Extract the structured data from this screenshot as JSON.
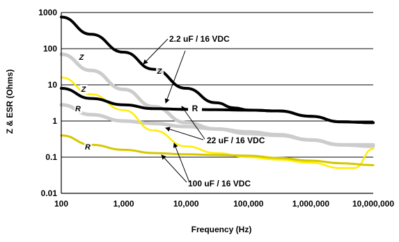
{
  "chart_data": {
    "type": "line",
    "xlabel": "Frequency (Hz)",
    "ylabel": "Z & ESR (Ohms)",
    "xscale": "log",
    "yscale": "log",
    "xlim": [
      100,
      10000000
    ],
    "ylim": [
      0.01,
      1000
    ],
    "grid": "horizontal",
    "x_ticks": [
      "100",
      "1,000",
      "10,000",
      "100,000",
      "1,000,000",
      "10,000,000"
    ],
    "y_ticks": [
      "1000",
      "100",
      "10",
      "1",
      "0.1",
      "0.01"
    ],
    "series": [
      {
        "name": "2.2 uF / 16 VDC",
        "kind": "Z",
        "color": "#000000",
        "points": [
          [
            100,
            750
          ],
          [
            300,
            250
          ],
          [
            1000,
            80
          ],
          [
            3000,
            27
          ],
          [
            10000,
            8
          ],
          [
            30000,
            3.2
          ],
          [
            60000,
            2.3
          ],
          [
            100000,
            2.0
          ],
          [
            300000,
            1.9
          ],
          [
            1000000,
            1.35
          ],
          [
            3000000,
            0.95
          ],
          [
            10000000,
            0.9
          ]
        ]
      },
      {
        "name": "2.2 uF / 16 VDC",
        "kind": "R",
        "color": "#000000",
        "points": [
          [
            100,
            8
          ],
          [
            300,
            4.2
          ],
          [
            1000,
            2.8
          ],
          [
            3000,
            2.2
          ],
          [
            10000,
            2.1
          ],
          [
            30000,
            2.05
          ],
          [
            100000,
            2.0
          ],
          [
            300000,
            1.9
          ],
          [
            1000000,
            1.35
          ],
          [
            3000000,
            0.95
          ],
          [
            10000000,
            0.9
          ]
        ]
      },
      {
        "name": "22 uF / 16 VDC",
        "kind": "Z",
        "color": "#cccccc",
        "points": [
          [
            100,
            70
          ],
          [
            300,
            25
          ],
          [
            1000,
            7.5
          ],
          [
            3000,
            2.5
          ],
          [
            10000,
            0.9
          ],
          [
            30000,
            0.6
          ],
          [
            100000,
            0.45
          ],
          [
            300000,
            0.4
          ],
          [
            1000000,
            0.3
          ],
          [
            3000000,
            0.22
          ],
          [
            10000000,
            0.22
          ]
        ]
      },
      {
        "name": "22 uF / 16 VDC",
        "kind": "R",
        "color": "#cccccc",
        "points": [
          [
            100,
            2.8
          ],
          [
            300,
            1.5
          ],
          [
            1000,
            1.0
          ],
          [
            3000,
            0.85
          ],
          [
            10000,
            0.7
          ],
          [
            30000,
            0.6
          ],
          [
            100000,
            0.5
          ],
          [
            300000,
            0.42
          ],
          [
            1000000,
            0.3
          ],
          [
            3000000,
            0.22
          ],
          [
            10000000,
            0.2
          ]
        ]
      },
      {
        "name": "100 uF / 16 VDC",
        "kind": "Z",
        "color": "#ffee00",
        "points": [
          [
            100,
            16
          ],
          [
            300,
            5.5
          ],
          [
            1000,
            2.0
          ],
          [
            3000,
            0.55
          ],
          [
            10000,
            0.2
          ],
          [
            30000,
            0.13
          ],
          [
            100000,
            0.1
          ],
          [
            300000,
            0.085
          ],
          [
            1000000,
            0.07
          ],
          [
            3000000,
            0.05
          ],
          [
            5000000,
            0.05
          ],
          [
            10000000,
            0.17
          ]
        ]
      },
      {
        "name": "100 uF / 16 VDC",
        "kind": "R",
        "color": "#d4c800",
        "points": [
          [
            100,
            0.4
          ],
          [
            300,
            0.22
          ],
          [
            1000,
            0.16
          ],
          [
            3000,
            0.13
          ],
          [
            10000,
            0.12
          ],
          [
            30000,
            0.115
          ],
          [
            100000,
            0.11
          ],
          [
            300000,
            0.095
          ],
          [
            1000000,
            0.08
          ],
          [
            3000000,
            0.068
          ],
          [
            10000000,
            0.06
          ]
        ]
      }
    ],
    "annotations": [
      {
        "text": "2.2 uF / 16 VDC"
      },
      {
        "text": "22 uF / 16 VDC"
      },
      {
        "text": "100 uF / 16 VDC"
      },
      {
        "text": "R"
      }
    ],
    "curve_letters": [
      "Z",
      "Z",
      "Z",
      "R",
      "R"
    ]
  }
}
